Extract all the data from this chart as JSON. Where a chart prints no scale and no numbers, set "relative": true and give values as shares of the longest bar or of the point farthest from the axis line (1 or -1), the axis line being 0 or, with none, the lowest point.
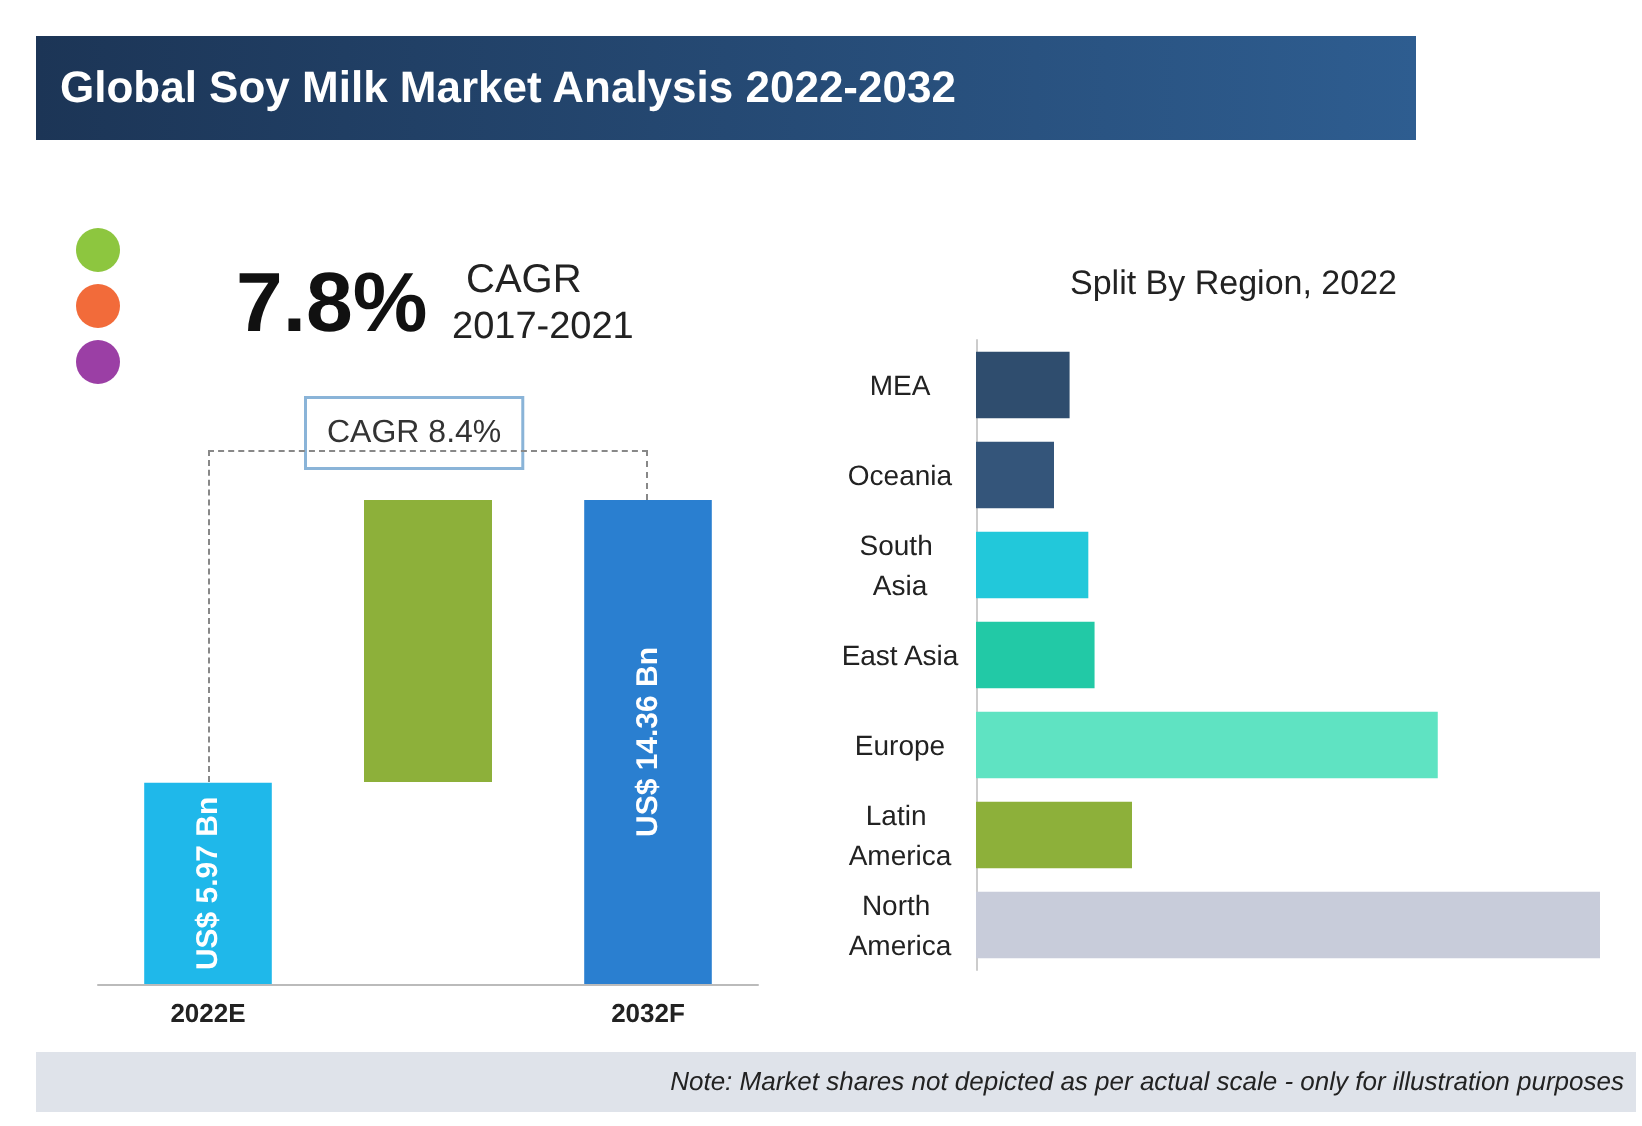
{
  "chart_data": [
    {
      "type": "bar",
      "title": "Global Soy Milk Market Analysis 2022-2032",
      "categories": [
        "2022E",
        null,
        "2032F"
      ],
      "values": [
        5.97,
        null,
        14.36
      ],
      "colors": [
        "#1fb8ea",
        null,
        "#2a7fd0"
      ],
      "value_labels": [
        "US$ 5.97 Bn",
        null,
        "US$ 14.36 Bn"
      ],
      "annotations": [
        "7.8%",
        "CAGR",
        "2017-2021",
        "CAGR 8.4%"
      ]
    },
    {
      "type": "bar",
      "orientation": "horizontal",
      "relative": true,
      "title": "Split By Region, 2022",
      "categories": [
        "MEA",
        "Oceania",
        "South Asia",
        "East Asia",
        "Europe",
        "Latin America",
        "North America"
      ],
      "values": [
        0.15,
        0.125,
        0.18,
        0.19,
        0.74,
        0.25,
        1
      ],
      "colors": [
        "#2f4d6e",
        "#34557a",
        "#22c8da",
        "#22c9a6",
        "#5fe3c2",
        "#8db03a",
        "#c8ccda"
      ],
      "annotations": [
        "Note: Market shares not depicted as per actual scale - only for illustration purposes"
      ]
    }
  ]
}
